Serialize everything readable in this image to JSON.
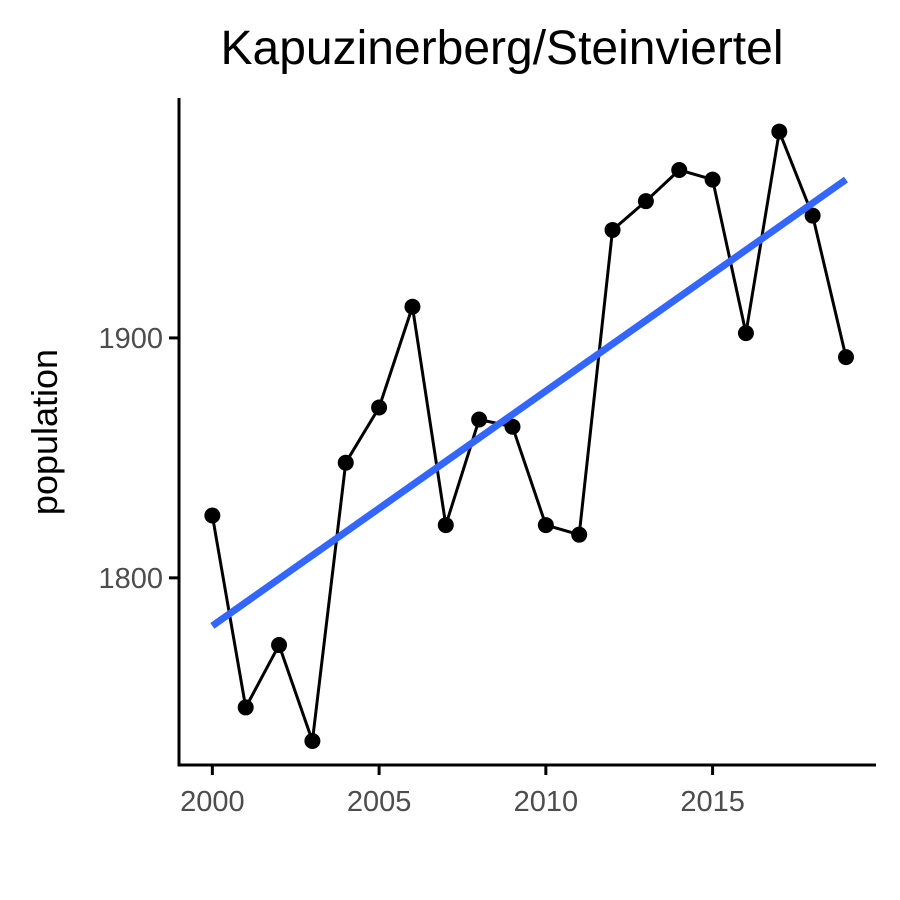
{
  "chart_data": {
    "type": "line",
    "title": "Kapuzinerberg/Steinviertel",
    "xlabel": "",
    "ylabel": "population",
    "x_ticks": [
      2000,
      2005,
      2010,
      2015
    ],
    "y_ticks": [
      1800,
      1900
    ],
    "xlim": [
      1999.0,
      2019.9
    ],
    "ylim": [
      1722,
      2000
    ],
    "grid": false,
    "series": [
      {
        "x": [
          2000,
          2001,
          2002,
          2003,
          2004,
          2005,
          2006,
          2007,
          2008,
          2009,
          2010,
          2011,
          2012,
          2013,
          2014,
          2015,
          2016,
          2017,
          2018,
          2019
        ],
        "values": [
          1826,
          1746,
          1772,
          1732,
          1848,
          1871,
          1913,
          1822,
          1866,
          1863,
          1822,
          1818,
          1945,
          1957,
          1970,
          1966,
          1902,
          1986,
          1951,
          1892
        ]
      }
    ],
    "trend": {
      "x": [
        2000,
        2019
      ],
      "values": [
        1780,
        1966
      ]
    },
    "colors": {
      "line": "#000000",
      "points": "#000000",
      "trend": "#3366FF",
      "axis": "#000000",
      "tick_text": "#4d4d4d"
    }
  }
}
